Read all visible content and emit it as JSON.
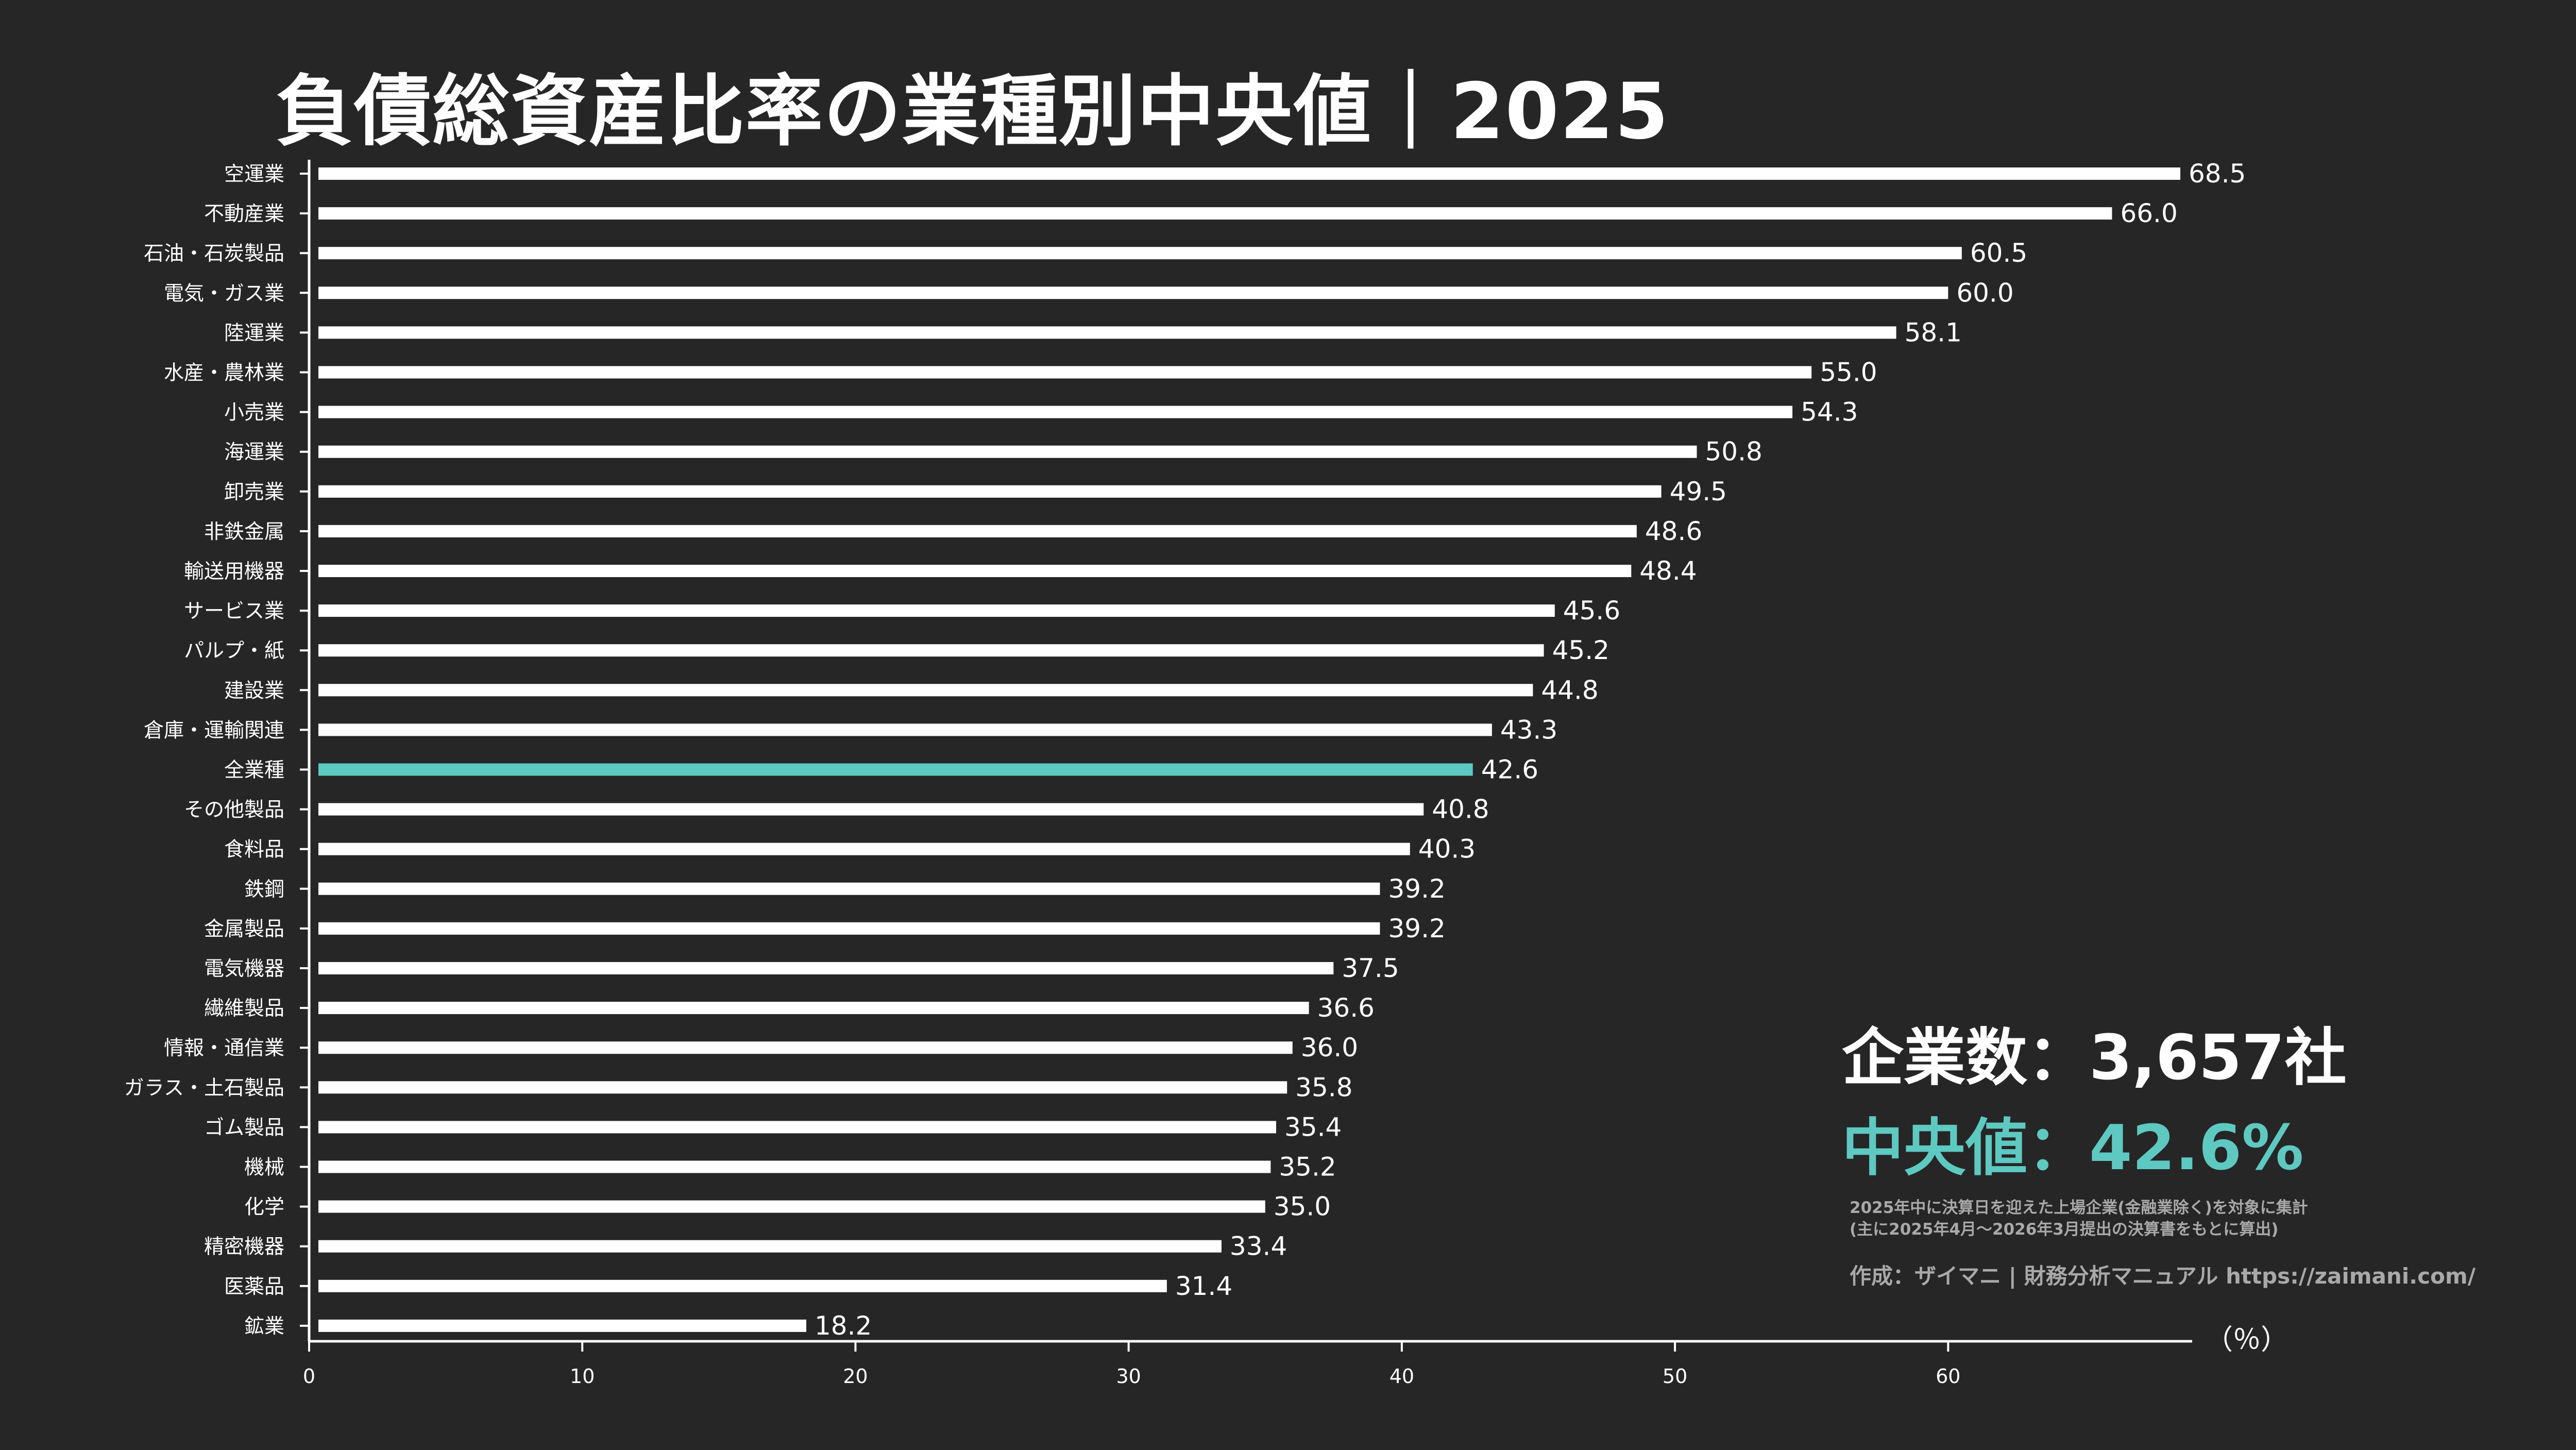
{
  "title": "負債総資産比率の業種別中央値｜2025",
  "stats": {
    "companies": "企業数：3,657社",
    "median": "中央値：42.6%"
  },
  "notes": {
    "line1": "2025年中に決算日を迎えた上場企業(金融業除く)を対象に集計",
    "line2": "(主に2025年4月〜2026年3月提出の決算書をもとに算出)",
    "credit": "作成：ザイマニ | 財務分析マニュアル https://zaimani.com/"
  },
  "colors": {
    "background": "#262626",
    "bar": "#ffffff",
    "highlight": "#5ec9c1",
    "note": "#a9a9a9"
  },
  "chart_data": {
    "type": "bar",
    "orientation": "horizontal",
    "unit_label": "（％）",
    "xlim": [
      0,
      68.5
    ],
    "xticks": [
      0,
      10,
      20,
      30,
      40,
      50,
      60
    ],
    "highlight_category": "全業種",
    "categories": [
      "空運業",
      "不動産業",
      "石油・石炭製品",
      "電気・ガス業",
      "陸運業",
      "水産・農林業",
      "小売業",
      "海運業",
      "卸売業",
      "非鉄金属",
      "輸送用機器",
      "サービス業",
      "パルプ・紙",
      "建設業",
      "倉庫・運輸関連",
      "全業種",
      "その他製品",
      "食料品",
      "鉄鋼",
      "金属製品",
      "電気機器",
      "繊維製品",
      "情報・通信業",
      "ガラス・土石製品",
      "ゴム製品",
      "機械",
      "化学",
      "精密機器",
      "医薬品",
      "鉱業"
    ],
    "values": [
      68.5,
      66.0,
      60.5,
      60.0,
      58.1,
      55.0,
      54.3,
      50.8,
      49.5,
      48.6,
      48.4,
      45.6,
      45.2,
      44.8,
      43.3,
      42.6,
      40.8,
      40.3,
      39.2,
      39.2,
      37.5,
      36.6,
      36.0,
      35.8,
      35.4,
      35.2,
      35.0,
      33.4,
      31.4,
      18.2
    ],
    "value_labels": [
      "68.5",
      "66.0",
      "60.5",
      "60.0",
      "58.1",
      "55.0",
      "54.3",
      "50.8",
      "49.5",
      "48.6",
      "48.4",
      "45.6",
      "45.2",
      "44.8",
      "43.3",
      "42.6",
      "40.8",
      "40.3",
      "39.2",
      "39.2",
      "37.5",
      "36.6",
      "36.0",
      "35.8",
      "35.4",
      "35.2",
      "35.0",
      "33.4",
      "31.4",
      "18.2"
    ]
  }
}
